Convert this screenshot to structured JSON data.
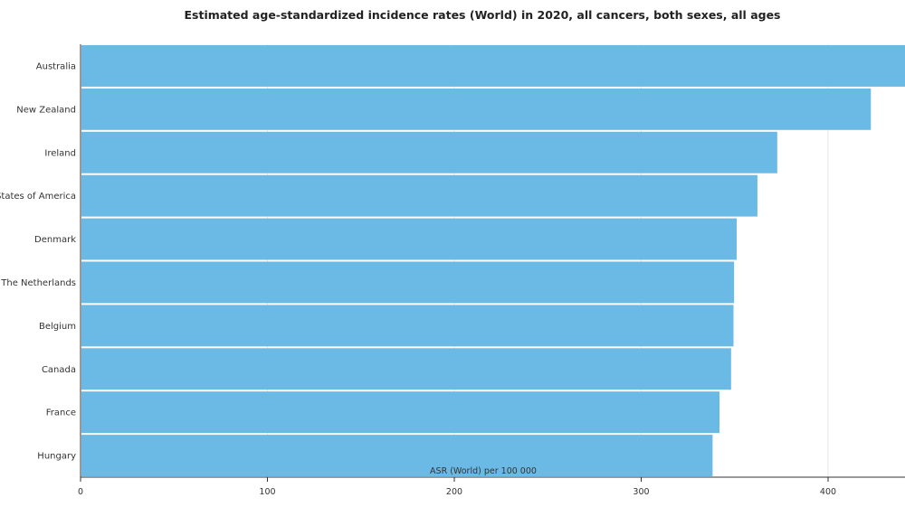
{
  "chart_data": {
    "type": "bar",
    "orientation": "horizontal",
    "title": "Estimated age-standardized incidence rates (World) in 2020, all cancers, both sexes, all ages",
    "xlabel": "ASR (World) per 100 000",
    "ylabel": "",
    "categories": [
      "Australia",
      "New Zealand",
      "Ireland",
      "United States of America",
      "Denmark",
      "The Netherlands",
      "Belgium",
      "Canada",
      "France",
      "Hungary"
    ],
    "values": [
      452.4,
      422.9,
      372.8,
      362.2,
      351.1,
      349.7,
      349.4,
      348.1,
      341.9,
      338.2
    ],
    "xlim": [
      0,
      440
    ],
    "xticks": [
      0,
      100,
      200,
      300,
      400
    ],
    "grid": "vertical",
    "bar_color": "#6bbae6"
  }
}
